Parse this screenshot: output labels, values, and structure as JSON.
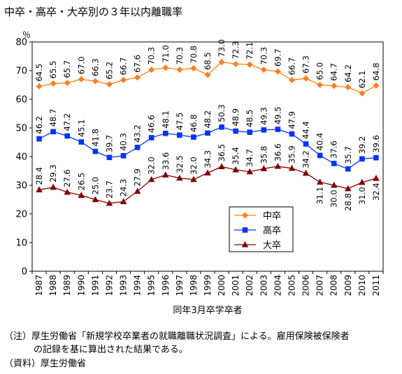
{
  "title": "中卒・高卒・大卒別の３年以内離職率",
  "notes": {
    "line1": "（注）厚生労働省「新規学校卒業者の就職離職状況調査」による。雇用保険被保険者",
    "line2": "の記録を基に算出された結果である。",
    "line3": "（資料）厚生労働省"
  },
  "chart_data": {
    "type": "line",
    "title": "中卒・高卒・大卒別の３年以内離職率",
    "xlabel": "同年3月卒学卒者",
    "ylabel": "％",
    "ylim": [
      0,
      80
    ],
    "yticks": [
      0,
      10,
      20,
      30,
      40,
      50,
      60,
      70,
      80
    ],
    "grid": false,
    "legend": "lower-right inside plot",
    "x": [
      "1987",
      "1988",
      "1989",
      "1990",
      "1991",
      "1992",
      "1993",
      "1994",
      "1995",
      "1996",
      "1997",
      "1998",
      "1999",
      "2000",
      "2001",
      "2002",
      "2003",
      "2004",
      "2005",
      "2006",
      "2007",
      "2008",
      "2009",
      "2010",
      "2011"
    ],
    "series": [
      {
        "name": "中卒",
        "color": "#ff7f1f",
        "marker": "diamond",
        "values": [
          64.5,
          65.5,
          65.7,
          67.0,
          66.3,
          65.2,
          66.7,
          67.6,
          70.3,
          71.0,
          70.3,
          70.8,
          68.5,
          73.0,
          72.3,
          72.1,
          70.3,
          69.7,
          66.7,
          67.3,
          65.0,
          64.7,
          64.2,
          62.1,
          64.8
        ]
      },
      {
        "name": "高卒",
        "color": "#0033ff",
        "marker": "square",
        "values": [
          46.2,
          48.7,
          47.2,
          45.1,
          41.8,
          39.7,
          40.3,
          43.2,
          46.6,
          48.1,
          47.5,
          46.8,
          48.2,
          50.3,
          48.9,
          48.5,
          49.3,
          49.5,
          47.9,
          44.4,
          40.4,
          37.6,
          35.7,
          39.2,
          39.6
        ]
      },
      {
        "name": "大卒",
        "color": "#800000",
        "marker": "triangle",
        "values": [
          28.4,
          29.3,
          27.6,
          26.5,
          25.0,
          23.7,
          24.3,
          27.9,
          32.0,
          33.6,
          32.5,
          32.0,
          34.3,
          36.5,
          35.4,
          34.7,
          35.8,
          36.6,
          35.9,
          34.2,
          31.1,
          30.0,
          28.8,
          31.0,
          32.4
        ]
      }
    ]
  }
}
